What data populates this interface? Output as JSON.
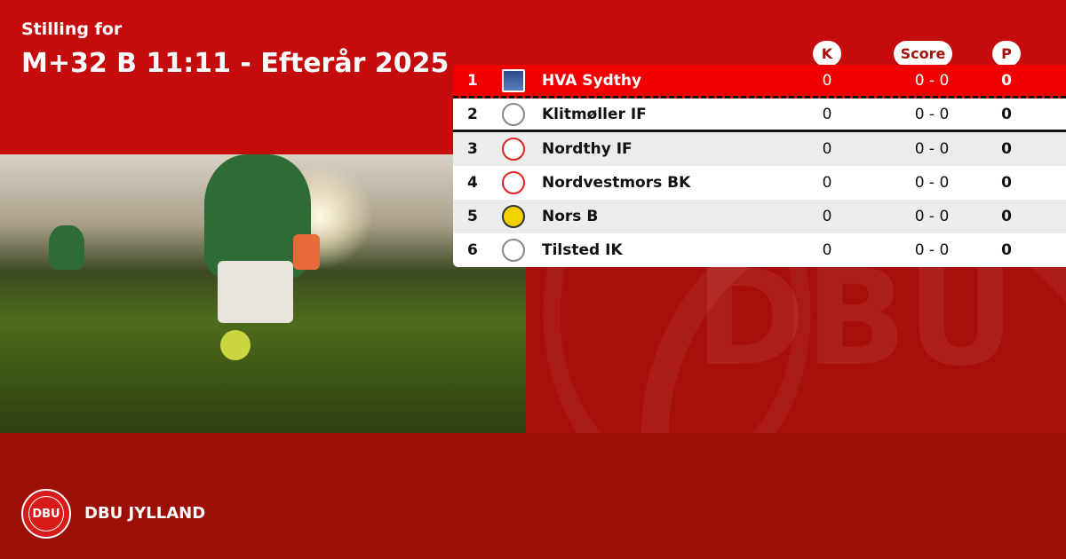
{
  "header": {
    "subtitle": "Stilling for",
    "title": "M+32 B 11:11 - Efterår 2025"
  },
  "columns": {
    "k": "K",
    "score": "Score",
    "p": "P"
  },
  "rows": [
    {
      "rank": "1",
      "team": "HVA Sydthy",
      "k": "0",
      "score": "0 - 0",
      "p": "0",
      "crest": "shield-blue"
    },
    {
      "rank": "2",
      "team": "Klitmøller IF",
      "k": "0",
      "score": "0 - 0",
      "p": "0",
      "crest": "round-grey"
    },
    {
      "rank": "3",
      "team": "Nordthy IF",
      "k": "0",
      "score": "0 - 0",
      "p": "0",
      "crest": "red-crest"
    },
    {
      "rank": "4",
      "team": "Nordvestmors BK",
      "k": "0",
      "score": "0 - 0",
      "p": "0",
      "crest": "red-round"
    },
    {
      "rank": "5",
      "team": "Nors B",
      "k": "0",
      "score": "0 - 0",
      "p": "0",
      "crest": "yellow-nbk"
    },
    {
      "rank": "6",
      "team": "Tilsted IK",
      "k": "0",
      "score": "0 - 0",
      "p": "0",
      "crest": "grey-shield"
    }
  ],
  "footer": {
    "brand": "DBU JYLLAND",
    "logo_text": "DBU"
  },
  "colors": {
    "header_bg": "#c40c0c",
    "highlight_row": "#f00000",
    "footer_bg": "#9c0f06"
  }
}
